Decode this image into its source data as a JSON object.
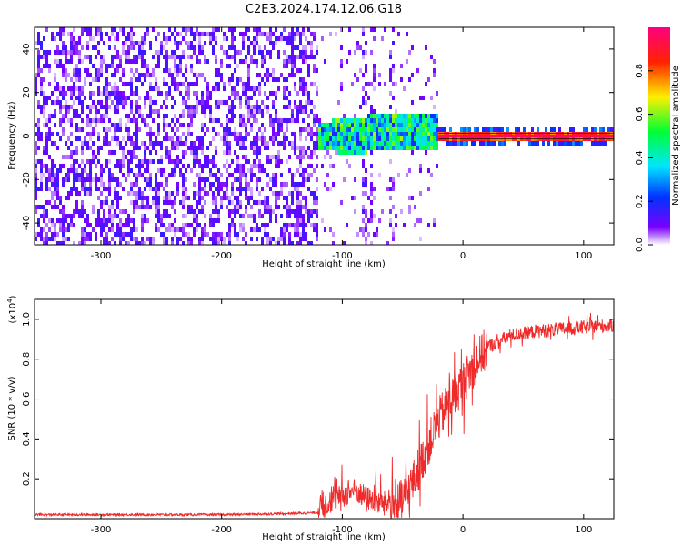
{
  "chart_data": [
    {
      "type": "heatmap",
      "title": "C2E3.2024.174.12.06.G18",
      "xlabel": "Height of straight line (km)",
      "ylabel": "Frequency (Hz)",
      "xlim": [
        -355,
        125
      ],
      "ylim": [
        -50,
        50
      ],
      "xticks": [
        -300,
        -200,
        -100,
        0,
        100
      ],
      "yticks": [
        -40,
        -20,
        0,
        20,
        40
      ],
      "colorbar": {
        "label": "Normalized spectral amplitude",
        "range": [
          0,
          1
        ],
        "ticks": [
          "0.0",
          "0.2",
          "0.4",
          "0.6",
          "0.8"
        ],
        "colors": [
          "#ffffff",
          "#7a00ff",
          "#0033ff",
          "#00e5ff",
          "#00ff33",
          "#ffee00",
          "#ff2200",
          "#ff0080"
        ]
      },
      "features": {
        "noise_region_x": [
          -355,
          -120
        ],
        "noise_amplitude": 0.12,
        "transition_x": [
          -150,
          -20
        ],
        "transition_amplitude": 0.45,
        "carrier_x": [
          -20,
          125
        ],
        "carrier_frequency_hz": 0,
        "carrier_amplitude": 0.95,
        "gap_lines_x": [
          -82,
          -75,
          -58
        ]
      }
    },
    {
      "type": "line",
      "xlabel": "Height of straight line (km)",
      "ylabel": "SNR (10 * v/v)",
      "ylabel_scale": "(x10",
      "ylabel_scale_exp": "4",
      "ylabel_scale_close": ")",
      "xlim": [
        -355,
        125
      ],
      "ylim": [
        0,
        1.1
      ],
      "xticks": [
        -300,
        -200,
        -100,
        0,
        100
      ],
      "yticks": [
        "0.2",
        "0.4",
        "0.6",
        "0.8",
        "1.0"
      ],
      "series": [
        {
          "name": "SNR",
          "color": "#ee2a2a",
          "x": [
            -355,
            -300,
            -250,
            -200,
            -150,
            -120,
            -110,
            -100,
            -90,
            -80,
            -70,
            -60,
            -50,
            -40,
            -30,
            -20,
            -10,
            0,
            10,
            20,
            30,
            40,
            60,
            80,
            100,
            125
          ],
          "y": [
            0.02,
            0.02,
            0.02,
            0.02,
            0.025,
            0.03,
            0.06,
            0.09,
            0.12,
            0.08,
            0.06,
            0.05,
            0.09,
            0.2,
            0.35,
            0.5,
            0.6,
            0.68,
            0.78,
            0.86,
            0.89,
            0.92,
            0.94,
            0.95,
            0.96,
            0.97
          ]
        }
      ]
    }
  ]
}
